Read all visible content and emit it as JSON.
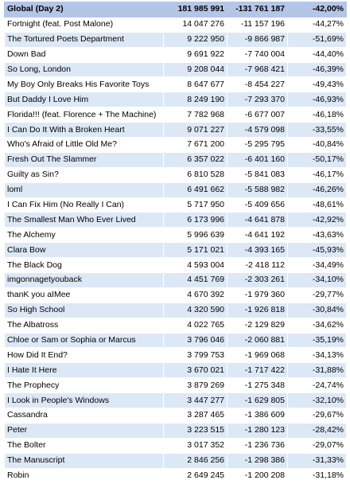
{
  "header": {
    "title": "Global (Day 2)",
    "streams": "181 985 991",
    "change": "-131 761 187",
    "pct": "-42,00%"
  },
  "rows": [
    {
      "song": "Fortnight (feat. Post Malone)",
      "streams": "14 047 276",
      "change": "-11 157 196",
      "pct": "-44,27%"
    },
    {
      "song": "The Tortured Poets Department",
      "streams": "9 222 950",
      "change": "-9 866 987",
      "pct": "-51,69%"
    },
    {
      "song": "Down Bad",
      "streams": "9 691 922",
      "change": "-7 740 004",
      "pct": "-44,40%"
    },
    {
      "song": "So Long, London",
      "streams": "9 208 044",
      "change": "-7 968 421",
      "pct": "-46,39%"
    },
    {
      "song": "My Boy Only Breaks His Favorite Toys",
      "streams": "8 647 677",
      "change": "-8 454 227",
      "pct": "-49,43%"
    },
    {
      "song": "But Daddy I Love Him",
      "streams": "8 249 190",
      "change": "-7 293 370",
      "pct": "-46,93%"
    },
    {
      "song": "Florida!!! (feat. Florence + The Machine)",
      "streams": "7 782 968",
      "change": "-6 677 007",
      "pct": "-46,18%"
    },
    {
      "song": "I Can Do It With a Broken Heart",
      "streams": "9 071 227",
      "change": "-4 579 098",
      "pct": "-33,55%"
    },
    {
      "song": "Who's Afraid of Little Old Me?",
      "streams": "7 671 200",
      "change": "-5 295 795",
      "pct": "-40,84%"
    },
    {
      "song": "Fresh Out The Slammer",
      "streams": "6 357 022",
      "change": "-6 401 160",
      "pct": "-50,17%"
    },
    {
      "song": "Guilty as Sin?",
      "streams": "6 810 528",
      "change": "-5 841 083",
      "pct": "-46,17%"
    },
    {
      "song": "loml",
      "streams": "6 491 662",
      "change": "-5 588 982",
      "pct": "-46,26%"
    },
    {
      "song": "I Can Fix Him (No Really I Can)",
      "streams": "5 717 950",
      "change": "-5 409 656",
      "pct": "-48,61%"
    },
    {
      "song": "The Smallest Man Who Ever Lived",
      "streams": "6 173 996",
      "change": "-4 641 878",
      "pct": "-42,92%"
    },
    {
      "song": "The Alchemy",
      "streams": "5 996 639",
      "change": "-4 641 192",
      "pct": "-43,63%"
    },
    {
      "song": "Clara Bow",
      "streams": "5 171 021",
      "change": "-4 393 165",
      "pct": "-45,93%"
    },
    {
      "song": "The Black Dog",
      "streams": "4 593 004",
      "change": "-2 418 112",
      "pct": "-34,49%"
    },
    {
      "song": "imgonnagetyouback",
      "streams": "4 451 769",
      "change": "-2 303 261",
      "pct": "-34,10%"
    },
    {
      "song": "thanK you aIMee",
      "streams": "4 670 392",
      "change": "-1 979 360",
      "pct": "-29,77%"
    },
    {
      "song": "So High School",
      "streams": "4 320 590",
      "change": "-1 926 818",
      "pct": "-30,84%"
    },
    {
      "song": "The Albatross",
      "streams": "4 022 765",
      "change": "-2 129 829",
      "pct": "-34,62%"
    },
    {
      "song": "Chloe or Sam or Sophia or Marcus",
      "streams": "3 796 046",
      "change": "-2 060 881",
      "pct": "-35,19%"
    },
    {
      "song": "How Did It End?",
      "streams": "3 799 753",
      "change": "-1 969 068",
      "pct": "-34,13%"
    },
    {
      "song": "I Hate It Here",
      "streams": "3 670 021",
      "change": "-1 717 422",
      "pct": "-31,88%"
    },
    {
      "song": "The Prophecy",
      "streams": "3 879 269",
      "change": "-1 275 348",
      "pct": "-24,74%"
    },
    {
      "song": "I Look in People's Windows",
      "streams": "3 447 277",
      "change": "-1 629 805",
      "pct": "-32,10%"
    },
    {
      "song": "Cassandra",
      "streams": "3 287 465",
      "change": "-1 386 609",
      "pct": "-29,67%"
    },
    {
      "song": "Peter",
      "streams": "3 223 515",
      "change": "-1 280 123",
      "pct": "-28,42%"
    },
    {
      "song": "The Bolter",
      "streams": "3 017 352",
      "change": "-1 236 736",
      "pct": "-29,07%"
    },
    {
      "song": "The Manuscript",
      "streams": "2 846 256",
      "change": "-1 298 386",
      "pct": "-31,33%"
    },
    {
      "song": "Robin",
      "streams": "2 649 245",
      "change": "-1 200 208",
      "pct": "-31,18%"
    }
  ]
}
